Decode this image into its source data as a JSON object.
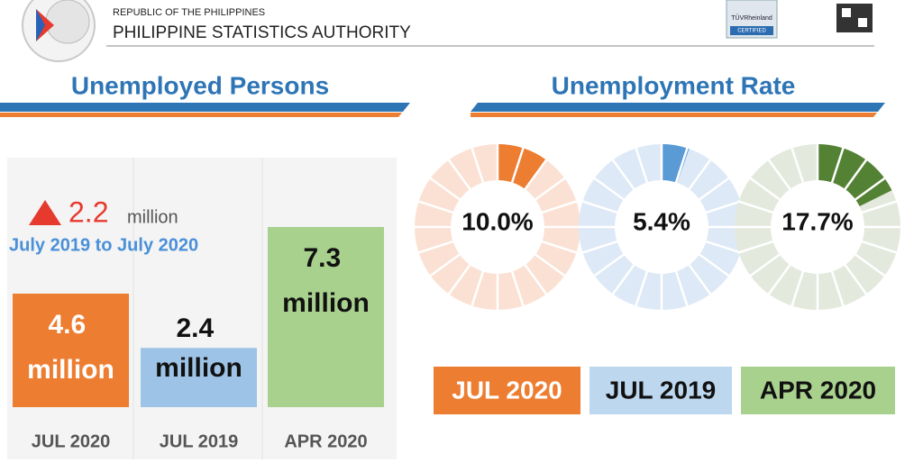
{
  "header": {
    "country": "REPUBLIC OF THE PHILIPPINES",
    "agency": "PHILIPPINE STATISTICS AUTHORITY",
    "cert_name": "TÜVRheinland",
    "cert_status": "CERTIFIED"
  },
  "chart_data": [
    {
      "type": "bar",
      "title": "Unemployed Persons",
      "categories": [
        "JUL 2020",
        "JUL 2019",
        "APR 2020"
      ],
      "values": [
        4.6,
        2.4,
        7.3
      ],
      "value_labels": [
        "4.6 million",
        "2.4 million",
        "7.3 million"
      ],
      "colors": [
        "#ed7d31",
        "#9dc3e6",
        "#a9d18e"
      ],
      "value_label_colors": [
        "#ffffff",
        "#111111",
        "#111111"
      ],
      "annotation": {
        "change": 2.2,
        "unit": "million",
        "period": "July 2019 to July 2020"
      }
    },
    {
      "type": "donut",
      "title": "Unemployment Rate",
      "categories": [
        "JUL 2020",
        "JUL 2019",
        "APR 2020"
      ],
      "values": [
        10.0,
        5.4,
        17.7
      ],
      "value_labels": [
        "10.0%",
        "5.4%",
        "17.7%"
      ],
      "colors": [
        "#ed7d31",
        "#5b9bd5",
        "#548235"
      ],
      "track_colors": [
        "#fbe1d3",
        "#dde9f6",
        "#e4e9dd"
      ],
      "label_box_colors": [
        "#ed7d31",
        "#bdd7ee",
        "#a9d18e"
      ],
      "label_text_colors": [
        "#ffffff",
        "#111111",
        "#111111"
      ]
    }
  ]
}
